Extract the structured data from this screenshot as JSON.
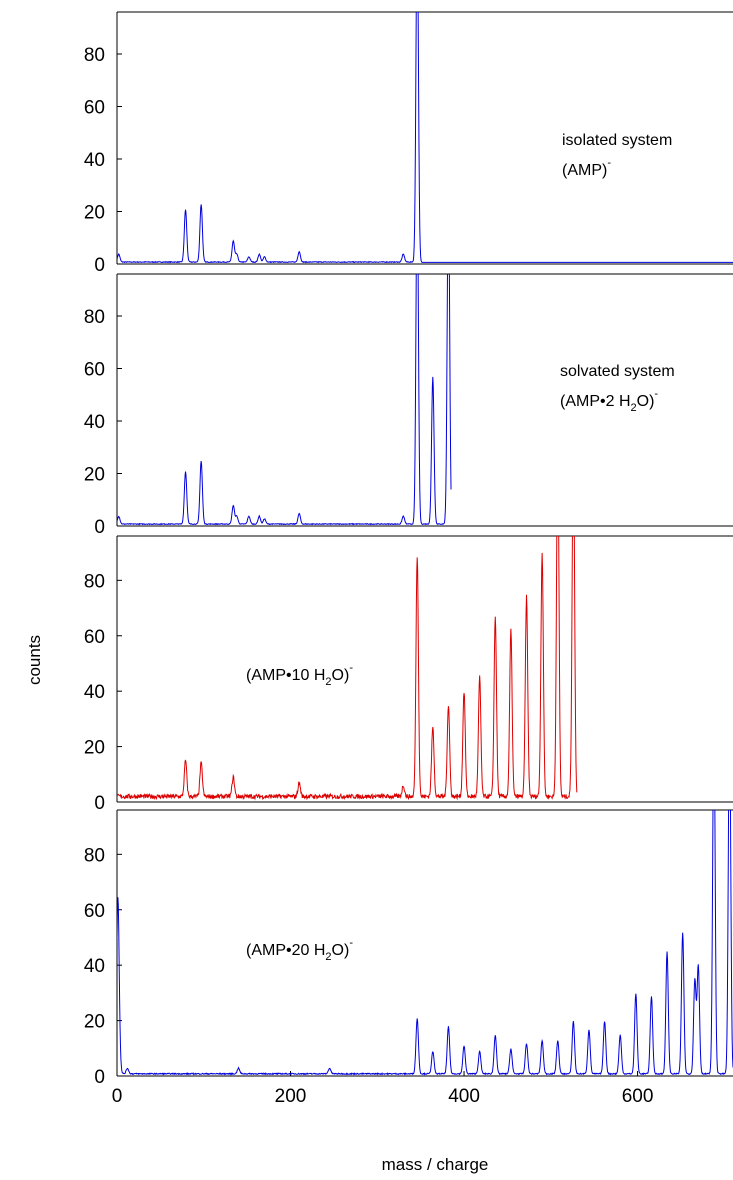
{
  "chart_data": [
    {
      "type": "line",
      "panel": "isolated",
      "color": "#0000dd",
      "xlim": [
        0,
        710
      ],
      "ylim": [
        0,
        96
      ],
      "yticks": [
        0,
        20,
        40,
        60,
        80
      ],
      "annotation": {
        "line1": "isolated system",
        "main": "(AMP)",
        "sup": "-"
      },
      "baseline": 0.6,
      "noise": 0.3,
      "noise_end": 350,
      "peaks": [
        {
          "x": 2,
          "y": 3
        },
        {
          "x": 79,
          "y": 20
        },
        {
          "x": 97,
          "y": 22
        },
        {
          "x": 134,
          "y": 8
        },
        {
          "x": 138,
          "y": 3
        },
        {
          "x": 152,
          "y": 2
        },
        {
          "x": 164,
          "y": 3
        },
        {
          "x": 170,
          "y": 2
        },
        {
          "x": 210,
          "y": 4
        },
        {
          "x": 330,
          "y": 3
        },
        {
          "x": 346,
          "y": 130
        }
      ],
      "x_end": 710
    },
    {
      "type": "line",
      "panel": "solvated",
      "color": "#0000dd",
      "xlim": [
        0,
        710
      ],
      "ylim": [
        0,
        96
      ],
      "yticks": [
        0,
        20,
        40,
        60,
        80
      ],
      "annotation": {
        "line1": "solvated system",
        "main": "(AMP•2 H",
        "sub": "2",
        "after": "O)",
        "sup": "-"
      },
      "baseline": 0.6,
      "noise": 0.3,
      "noise_end": 385,
      "peaks": [
        {
          "x": 2,
          "y": 3
        },
        {
          "x": 79,
          "y": 20
        },
        {
          "x": 97,
          "y": 24
        },
        {
          "x": 134,
          "y": 7
        },
        {
          "x": 138,
          "y": 3
        },
        {
          "x": 152,
          "y": 3
        },
        {
          "x": 164,
          "y": 3
        },
        {
          "x": 170,
          "y": 2
        },
        {
          "x": 210,
          "y": 4
        },
        {
          "x": 330,
          "y": 3
        },
        {
          "x": 346,
          "y": 130
        },
        {
          "x": 364,
          "y": 56
        },
        {
          "x": 382,
          "y": 130
        }
      ],
      "x_end": 385
    },
    {
      "type": "line",
      "panel": "10water",
      "color": "#dd0000",
      "xlim": [
        0,
        710
      ],
      "ylim": [
        0,
        96
      ],
      "yticks": [
        0,
        20,
        40,
        60,
        80
      ],
      "annotation": {
        "line1": "",
        "main": "(AMP•10 H",
        "sub": "2",
        "after": "O)",
        "sup": "-"
      },
      "baseline": 1.2,
      "noise": 1.6,
      "noise_end": 530,
      "peaks": [
        {
          "x": 79,
          "y": 13
        },
        {
          "x": 97,
          "y": 12
        },
        {
          "x": 134,
          "y": 7
        },
        {
          "x": 210,
          "y": 5
        },
        {
          "x": 330,
          "y": 4
        },
        {
          "x": 346,
          "y": 87
        },
        {
          "x": 364,
          "y": 25
        },
        {
          "x": 382,
          "y": 33
        },
        {
          "x": 400,
          "y": 38
        },
        {
          "x": 418,
          "y": 43
        },
        {
          "x": 436,
          "y": 65
        },
        {
          "x": 454,
          "y": 60
        },
        {
          "x": 472,
          "y": 72
        },
        {
          "x": 490,
          "y": 88
        },
        {
          "x": 508,
          "y": 130
        },
        {
          "x": 526,
          "y": 130
        }
      ],
      "x_end": 530
    },
    {
      "type": "line",
      "panel": "20water",
      "color": "#0000dd",
      "xlim": [
        0,
        710
      ],
      "ylim": [
        0,
        96
      ],
      "yticks": [
        0,
        20,
        40,
        60,
        80
      ],
      "xticks": [
        0,
        200,
        400,
        600
      ],
      "annotation": {
        "line1": "",
        "main": "(AMP•20 H",
        "sub": "2",
        "after": "O)",
        "sup": "-"
      },
      "baseline": 0.6,
      "noise": 0.4,
      "noise_end": 710,
      "peaks": [
        {
          "x": 1,
          "y": 62
        },
        {
          "x": 3,
          "y": 5
        },
        {
          "x": 12,
          "y": 2
        },
        {
          "x": 140,
          "y": 2
        },
        {
          "x": 245,
          "y": 2
        },
        {
          "x": 346,
          "y": 20
        },
        {
          "x": 364,
          "y": 8
        },
        {
          "x": 382,
          "y": 17
        },
        {
          "x": 400,
          "y": 10
        },
        {
          "x": 418,
          "y": 8
        },
        {
          "x": 436,
          "y": 14
        },
        {
          "x": 454,
          "y": 9
        },
        {
          "x": 472,
          "y": 11
        },
        {
          "x": 490,
          "y": 12
        },
        {
          "x": 508,
          "y": 12
        },
        {
          "x": 526,
          "y": 19
        },
        {
          "x": 544,
          "y": 16
        },
        {
          "x": 562,
          "y": 19
        },
        {
          "x": 580,
          "y": 14
        },
        {
          "x": 598,
          "y": 29
        },
        {
          "x": 616,
          "y": 28
        },
        {
          "x": 634,
          "y": 44
        },
        {
          "x": 652,
          "y": 51
        },
        {
          "x": 666,
          "y": 34
        },
        {
          "x": 670,
          "y": 39
        },
        {
          "x": 688,
          "y": 130
        },
        {
          "x": 706,
          "y": 130
        }
      ],
      "x_end": 710
    }
  ],
  "xlabel": "mass / charge",
  "ylabel": "counts"
}
